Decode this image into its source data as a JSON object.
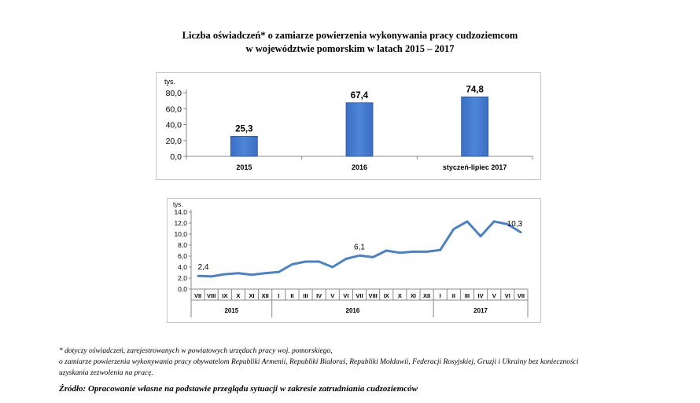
{
  "title_line1": "Liczba oświadczeń* o zamiarze powierzenia wykonywania pracy cudzoziemcom",
  "title_line2": "w województwie pomorskim w latach 2015 – 2017",
  "chart_data": [
    {
      "type": "bar",
      "unit_label": "tys.",
      "categories": [
        "2015",
        "2016",
        "styczeń-lipiec 2017"
      ],
      "values": [
        25.3,
        67.4,
        74.8
      ],
      "value_labels": [
        "25,3",
        "67,4",
        "74,8"
      ],
      "ylim": [
        0,
        80
      ],
      "yticks": [
        "0,0",
        "20,0",
        "40,0",
        "60,0",
        "80,0"
      ],
      "bar_color": "#4f86d6",
      "grid": false
    },
    {
      "type": "line",
      "unit_label": "tys.",
      "months": [
        "VII",
        "VIII",
        "IX",
        "X",
        "XI",
        "XII",
        "I",
        "II",
        "III",
        "IV",
        "V",
        "VI",
        "VII",
        "VIII",
        "IX",
        "X",
        "XI",
        "XII",
        "I",
        "II",
        "III",
        "IV",
        "V",
        "VI",
        "VII"
      ],
      "years": [
        {
          "label": "2015",
          "count": 6
        },
        {
          "label": "2016",
          "count": 12
        },
        {
          "label": "2017",
          "count": 7
        }
      ],
      "values": [
        2.4,
        2.3,
        2.7,
        2.9,
        2.6,
        2.9,
        3.1,
        4.5,
        5.0,
        5.0,
        4.0,
        5.5,
        6.1,
        5.8,
        7.0,
        6.6,
        6.8,
        6.8,
        7.1,
        10.9,
        12.3,
        9.6,
        12.3,
        11.8,
        10.3
      ],
      "annotations": [
        {
          "index": 0,
          "text": "2,4"
        },
        {
          "index": 12,
          "text": "6,1"
        },
        {
          "index": 24,
          "text": "10,3"
        }
      ],
      "ylim": [
        0,
        14
      ],
      "yticks": [
        "0,0",
        "2,0",
        "4,0",
        "6,0",
        "8,0",
        "10,0",
        "12,0",
        "14,0"
      ],
      "line_color": "#4f81bd",
      "grid": false
    }
  ],
  "footnote_line1": "* dotyczy oświadczeń, zarejestrowanych w powiatowych  urzędach pracy woj. pomorskiego,",
  "footnote_line2": "o zamiarze powierzenia wykonywania pracy obywatelom Republiki Armenii, Republiki Białoruś, Republiki Mołdawii, Federacji Rosyjskiej, Gruzji i Ukrainy bez konieczności",
  "footnote_line3": "uzyskania zezwolenia na pracę.",
  "source": "Źródło: Opracowanie własne na podstawie przeglądu sytuacji w zakresie zatrudniania cudzoziemców"
}
